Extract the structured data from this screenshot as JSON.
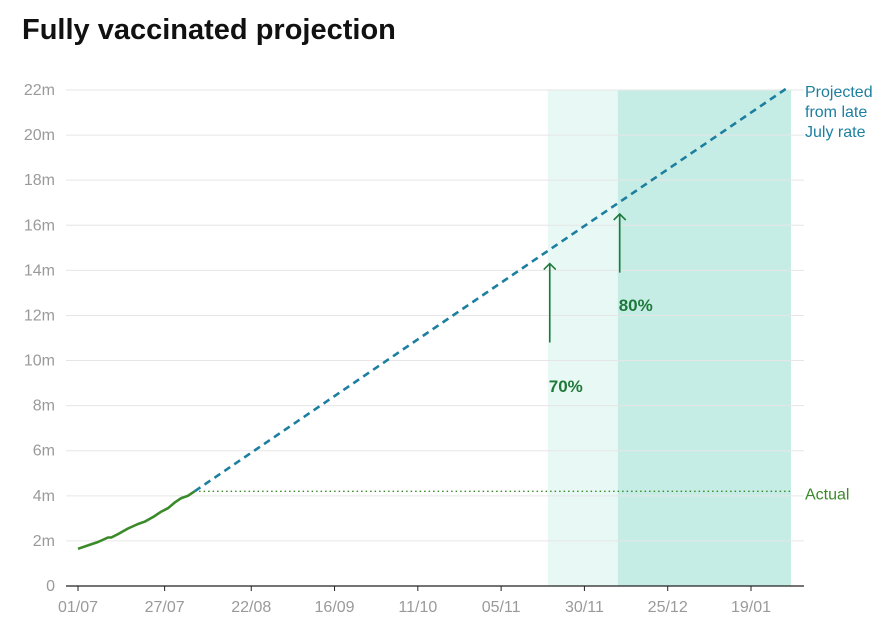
{
  "title": "Fully vaccinated projection",
  "colors": {
    "actual": "#3a8a2a",
    "projected": "#1d7fa0",
    "band70": "#e8f8f4",
    "band80": "#c6ede5",
    "arrow": "#1f7a3a",
    "grid": "#e6e6e6"
  },
  "chart_data": {
    "type": "line",
    "title": "Fully vaccinated projection",
    "xlabel": "",
    "ylabel": "",
    "y_tick_labels": [
      "0",
      "2m",
      "4m",
      "6m",
      "8m",
      "10m",
      "12m",
      "14m",
      "16m",
      "18m",
      "20m",
      "22m"
    ],
    "y_tick_values": [
      0,
      2,
      4,
      6,
      8,
      10,
      12,
      14,
      16,
      18,
      20,
      22
    ],
    "x_tick_labels": [
      "01/07",
      "27/07",
      "22/08",
      "16/09",
      "11/10",
      "05/11",
      "30/11",
      "25/12",
      "19/01"
    ],
    "x_tick_dates": [
      "2021-07-01",
      "2021-07-27",
      "2021-08-22",
      "2021-09-16",
      "2021-10-11",
      "2021-11-05",
      "2021-11-30",
      "2021-12-25",
      "2022-01-19"
    ],
    "x_range": [
      "2021-07-01",
      "2022-02-01"
    ],
    "y_range": [
      0,
      22
    ],
    "units": "millions",
    "grid": true,
    "series": [
      {
        "name": "Actual",
        "style": "solid",
        "points": [
          [
            "2021-07-01",
            1.65
          ],
          [
            "2021-07-04",
            1.8
          ],
          [
            "2021-07-07",
            1.95
          ],
          [
            "2021-07-10",
            2.15
          ],
          [
            "2021-07-11",
            2.15
          ],
          [
            "2021-07-13",
            2.3
          ],
          [
            "2021-07-16",
            2.55
          ],
          [
            "2021-07-19",
            2.75
          ],
          [
            "2021-07-21",
            2.85
          ],
          [
            "2021-07-24",
            3.1
          ],
          [
            "2021-07-26",
            3.3
          ],
          [
            "2021-07-28",
            3.45
          ],
          [
            "2021-07-30",
            3.7
          ],
          [
            "2021-08-01",
            3.9
          ],
          [
            "2021-08-03",
            4.0
          ],
          [
            "2021-08-05",
            4.2
          ]
        ]
      },
      {
        "name": "Projected from late July rate",
        "style": "dashed",
        "points": [
          [
            "2021-08-05",
            4.2
          ],
          [
            "2022-01-30",
            22.1
          ]
        ]
      }
    ],
    "reference_lines": [
      {
        "label": "Actual",
        "y": 4.2,
        "from": "2021-08-05",
        "to": "2022-01-31",
        "style": "dotted"
      }
    ],
    "bands": [
      {
        "from": "2021-11-19",
        "to": "2021-12-10",
        "shade": "light"
      },
      {
        "from": "2021-12-10",
        "to": "2022-01-31",
        "shade": "dark"
      }
    ],
    "annotations": [
      {
        "label": "70%",
        "x": "2021-11-19",
        "arrow_from": 10.8,
        "arrow_to": 14.3,
        "label_y": 8.6
      },
      {
        "label": "80%",
        "x": "2021-12-10",
        "arrow_from": 13.9,
        "arrow_to": 16.5,
        "label_y": 12.2
      },
      {
        "label": "Projected from late July rate",
        "lines": [
          "Projected",
          "from late",
          "July rate"
        ]
      },
      {
        "label": "Actual"
      }
    ]
  }
}
